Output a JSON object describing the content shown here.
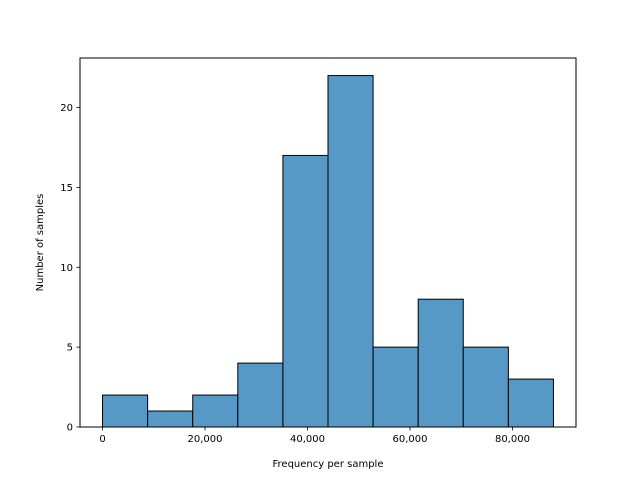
{
  "chart_data": {
    "type": "bar",
    "subtype": "histogram",
    "bin_edges": [
      0,
      8800,
      17600,
      26400,
      35200,
      44000,
      52800,
      61600,
      70400,
      79200,
      88000
    ],
    "values": [
      2,
      1,
      2,
      4,
      17,
      22,
      5,
      8,
      5,
      3
    ],
    "xlabel": "Frequency per sample",
    "ylabel": "Number of samples",
    "xlim": [
      -4400,
      92400
    ],
    "ylim": [
      0,
      23.1
    ],
    "x_ticks": [
      0,
      20000,
      40000,
      60000,
      80000
    ],
    "x_tick_labels": [
      "0",
      "20,000",
      "40,000",
      "60,000",
      "80,000"
    ],
    "y_ticks": [
      0,
      5,
      10,
      15,
      20
    ],
    "y_tick_labels": [
      "0",
      "5",
      "10",
      "15",
      "20"
    ],
    "grid": false,
    "legend": "none",
    "bar_color": "#5799c6",
    "edge_color": "#000000"
  }
}
